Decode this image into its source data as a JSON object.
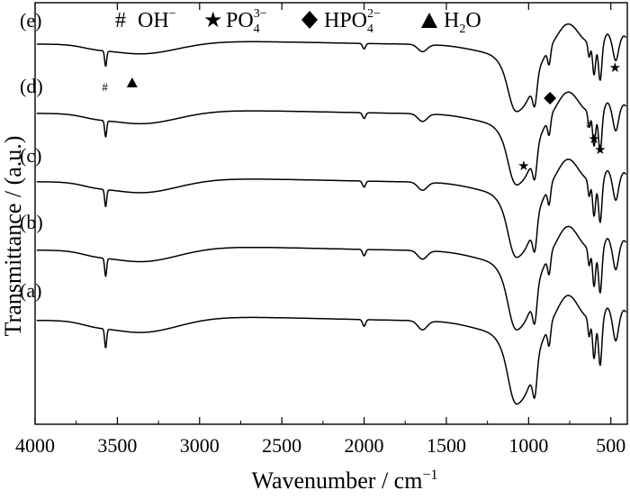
{
  "chart_data": {
    "type": "line",
    "xlabel": "Wavenumber / cm",
    "xlabel_sup": "−1",
    "ylabel": "Transmittance / (a.u.)",
    "xlim": [
      4000,
      400
    ],
    "x_reversed": true,
    "x_ticks": [
      {
        "value": 4000,
        "label": "4000"
      },
      {
        "value": 3500,
        "label": "3500"
      },
      {
        "value": 3000,
        "label": "3000"
      },
      {
        "value": 2500,
        "label": "2500"
      },
      {
        "value": 2000,
        "label": "2000"
      },
      {
        "value": 1500,
        "label": "1500"
      },
      {
        "value": 1000,
        "label": "1000"
      },
      {
        "value": 500,
        "label": "500"
      }
    ],
    "y_ticks_shown": false,
    "legend": {
      "placement": "top",
      "items": [
        {
          "marker": "#",
          "marker_name": "hash",
          "label": "OH",
          "sup": "−",
          "sub": ""
        },
        {
          "marker": "★",
          "marker_name": "star",
          "label": "PO",
          "sup": "3−",
          "sub": "4"
        },
        {
          "marker": "◆",
          "marker_name": "diamond",
          "label": "HPO",
          "sup": "2−",
          "sub": "4"
        },
        {
          "marker": "▲",
          "marker_name": "triangle",
          "label": "H",
          "sup": "",
          "sub": "2",
          "label_tail": "O"
        }
      ]
    },
    "series": [
      {
        "name": "(a)",
        "offset": 0
      },
      {
        "name": "(b)",
        "offset": 1
      },
      {
        "name": "(c)",
        "offset": 2
      },
      {
        "name": "(d)",
        "offset": 3
      },
      {
        "name": "(e)",
        "offset": 4
      }
    ],
    "annotations": [
      {
        "symbol": "#",
        "x": 3575,
        "series": "(e)",
        "meaning": "OH"
      },
      {
        "symbol": "▲",
        "x": 3410,
        "series": "(e)",
        "meaning": "H2O"
      },
      {
        "symbol": "★",
        "x": 1030,
        "series": "(d)",
        "meaning": "PO4 3-"
      },
      {
        "symbol": "◆",
        "x": 870,
        "series": "(d)",
        "meaning": "HPO4 2-"
      },
      {
        "symbol": "#",
        "x": 632,
        "series": "(d)",
        "meaning": "OH"
      },
      {
        "symbol": "★",
        "x": 602,
        "series": "(d)",
        "meaning": "PO4 3-"
      },
      {
        "symbol": "★",
        "x": 565,
        "series": "(d)",
        "meaning": "PO4 3-"
      },
      {
        "symbol": "★",
        "x": 475,
        "series": "(e)",
        "meaning": "PO4 3-"
      }
    ],
    "colors": {
      "line": "#000000",
      "background": "#ffffff"
    }
  }
}
